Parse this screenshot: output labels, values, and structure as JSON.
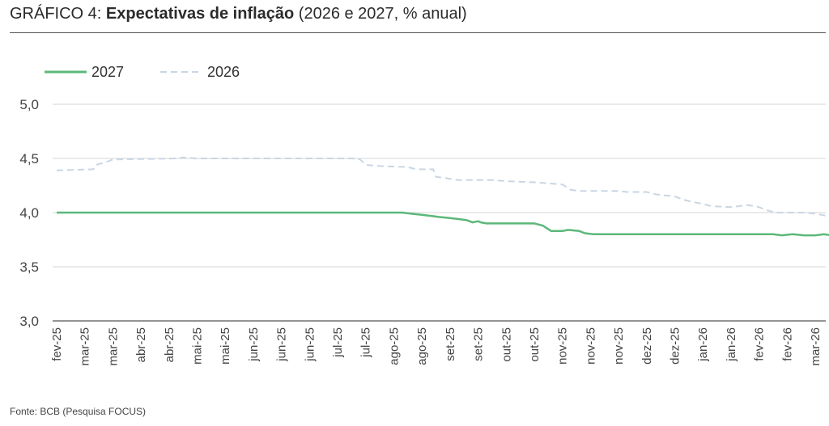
{
  "title": {
    "prefix": "GRÁFICO 4: ",
    "bold": "Expectativas de inflação",
    "suffix": " (2026 e 2027, % anual)"
  },
  "source": "Fonte: BCB (Pesquisa FOCUS)",
  "chart_data": {
    "type": "line",
    "ylim": [
      3.0,
      5.0
    ],
    "yticks": [
      "3,0",
      "3,5",
      "4,0",
      "4,5",
      "5,0"
    ],
    "ytick_values": [
      3.0,
      3.5,
      4.0,
      4.5,
      5.0
    ],
    "grid": true,
    "legend_position": "top-left",
    "x": [
      "fev-25",
      "mar-25",
      "mar-25",
      "abr-25",
      "abr-25",
      "mai-25",
      "mai-25",
      "jun-25",
      "jun-25",
      "jun-25",
      "jul-25",
      "jul-25",
      "ago-25",
      "ago-25",
      "set-25",
      "set-25",
      "out-25",
      "out-25",
      "nov-25",
      "nov-25",
      "nov-25",
      "dez-25",
      "dez-25",
      "jan-26",
      "jan-26",
      "fev-26",
      "fev-26",
      "mar-26"
    ],
    "series": [
      {
        "name": "2027",
        "color": "#5cb87a",
        "style": "solid",
        "points": [
          [
            0,
            4.0
          ],
          [
            12.3,
            4.0
          ],
          [
            12.6,
            3.99
          ],
          [
            13.0,
            3.98
          ],
          [
            13.3,
            3.97
          ],
          [
            13.6,
            3.96
          ],
          [
            14.0,
            3.95
          ],
          [
            14.3,
            3.94
          ],
          [
            14.6,
            3.93
          ],
          [
            14.8,
            3.91
          ],
          [
            15.0,
            3.92
          ],
          [
            15.1,
            3.91
          ],
          [
            15.3,
            3.9
          ],
          [
            16.5,
            3.9
          ],
          [
            17.0,
            3.9
          ],
          [
            17.3,
            3.88
          ],
          [
            17.6,
            3.83
          ],
          [
            18.0,
            3.83
          ],
          [
            18.2,
            3.84
          ],
          [
            18.6,
            3.83
          ],
          [
            18.8,
            3.81
          ],
          [
            19.1,
            3.8
          ],
          [
            20.0,
            3.8
          ],
          [
            22.0,
            3.8
          ],
          [
            25.5,
            3.8
          ],
          [
            25.8,
            3.79
          ],
          [
            26.2,
            3.8
          ],
          [
            26.6,
            3.79
          ],
          [
            27.0,
            3.79
          ],
          [
            27.3,
            3.8
          ],
          [
            27.6,
            3.79
          ],
          [
            28.0,
            3.8
          ]
        ]
      },
      {
        "name": "2026",
        "color": "#c9d6e3",
        "style": "dashed",
        "points": [
          [
            0,
            4.39
          ],
          [
            1.3,
            4.4
          ],
          [
            1.4,
            4.44
          ],
          [
            1.8,
            4.47
          ],
          [
            2.0,
            4.49
          ],
          [
            4.3,
            4.5
          ],
          [
            4.5,
            4.51
          ],
          [
            5.0,
            4.5
          ],
          [
            10.5,
            4.5
          ],
          [
            10.8,
            4.49
          ],
          [
            11.0,
            4.44
          ],
          [
            11.5,
            4.43
          ],
          [
            12.5,
            4.42
          ],
          [
            12.8,
            4.4
          ],
          [
            13.4,
            4.4
          ],
          [
            13.5,
            4.33
          ],
          [
            13.8,
            4.32
          ],
          [
            14.3,
            4.3
          ],
          [
            15.5,
            4.3
          ],
          [
            16.0,
            4.29
          ],
          [
            17.0,
            4.28
          ],
          [
            17.5,
            4.27
          ],
          [
            18.0,
            4.26
          ],
          [
            18.3,
            4.21
          ],
          [
            18.6,
            4.2
          ],
          [
            19.5,
            4.2
          ],
          [
            20.0,
            4.2
          ],
          [
            20.3,
            4.19
          ],
          [
            21.0,
            4.19
          ],
          [
            21.3,
            4.17
          ],
          [
            21.6,
            4.16
          ],
          [
            22.0,
            4.15
          ],
          [
            22.3,
            4.12
          ],
          [
            22.6,
            4.1
          ],
          [
            23.0,
            4.08
          ],
          [
            23.3,
            4.06
          ],
          [
            24.0,
            4.05
          ],
          [
            24.3,
            4.06
          ],
          [
            24.6,
            4.07
          ],
          [
            25.0,
            4.05
          ],
          [
            25.3,
            4.02
          ],
          [
            25.6,
            4.0
          ],
          [
            26.5,
            4.0
          ],
          [
            27.0,
            3.99
          ],
          [
            27.4,
            3.97
          ],
          [
            27.8,
            3.95
          ],
          [
            28.4,
            3.95
          ],
          [
            28.6,
            3.9
          ],
          [
            29.2,
            3.9
          ],
          [
            29.5,
            3.91
          ],
          [
            30.0,
            3.92
          ],
          [
            30.3,
            3.92
          ],
          [
            30.4,
            4.05
          ],
          [
            30.5,
            4.1
          ]
        ]
      }
    ]
  }
}
